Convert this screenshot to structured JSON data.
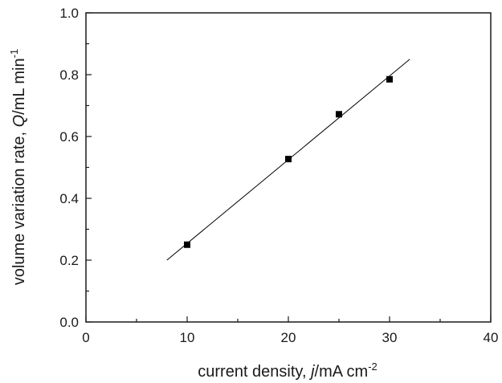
{
  "chart_data": {
    "type": "scatter",
    "xlabel": {
      "prefix": "current density,  ",
      "var": "j",
      "unit": "/mA cm",
      "sup": "-2"
    },
    "ylabel": {
      "prefix": "volume variation rate,  ",
      "var": "Q",
      "unit": "/mL min",
      "sup": "-1"
    },
    "xlim": [
      0,
      40
    ],
    "ylim": [
      0.0,
      1.0
    ],
    "xticks": [
      0,
      10,
      20,
      30,
      40
    ],
    "xtick_labels": [
      "0",
      "10",
      "20",
      "30",
      "40"
    ],
    "yticks": [
      0.0,
      0.2,
      0.4,
      0.6,
      0.8,
      1.0
    ],
    "ytick_labels": [
      "0.0",
      "0.2",
      "0.4",
      "0.6",
      "0.8",
      "1.0"
    ],
    "grid": false,
    "series": [
      {
        "x": [
          10,
          20,
          25,
          30
        ],
        "y": [
          0.25,
          0.527,
          0.672,
          0.785
        ],
        "marker": "square"
      }
    ],
    "fit_line": {
      "x": [
        8,
        32
      ],
      "y": [
        0.2,
        0.85
      ]
    },
    "colors": {
      "axis": "#1a1a1a",
      "marker": "#000000",
      "line": "#000000"
    }
  }
}
